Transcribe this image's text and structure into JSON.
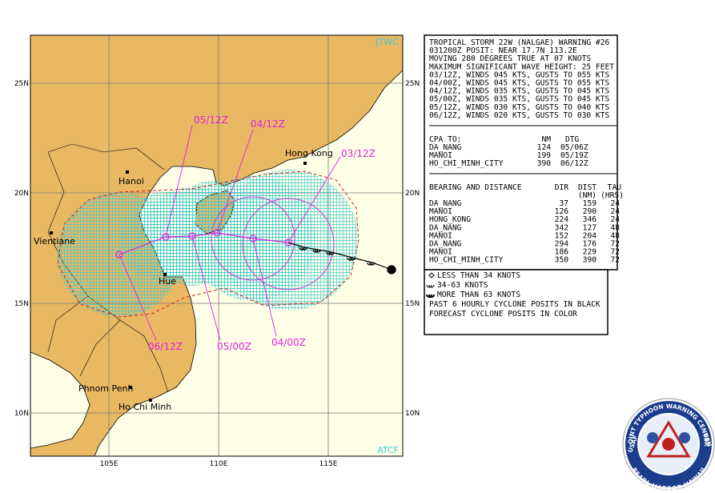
{
  "map": {
    "corner_labels": {
      "top": "JTWC",
      "bottom": "ATCF"
    },
    "lat_labels": [
      "25N",
      "20N",
      "15N",
      "10N"
    ],
    "lon_labels": [
      "105E",
      "110E",
      "115E"
    ],
    "places": [
      "Hanoi",
      "Vientiane",
      "Hue",
      "Hong Kong",
      "Phnom Penh",
      "Ho Chi Minh"
    ],
    "forecast_labels": [
      "05/12Z",
      "04/12Z",
      "03/12Z",
      "06/12Z",
      "05/00Z",
      "04/00Z"
    ]
  },
  "warning": {
    "lines": [
      "TROPICAL STORM 22W (NALGAE) WARNING #26",
      "031200Z POSIT: NEAR 17.7N 113.2E",
      "MOVING 280 DEGREES TRUE AT 07 KNOTS",
      "MAXIMUM SIGNIFICANT WAVE HEIGHT: 25 FEET",
      "03/12Z, WINDS 045 KTS, GUSTS TO 055 KTS",
      "04/00Z, WINDS 045 KTS, GUSTS TO 055 KTS",
      "04/12Z, WINDS 035 KTS, GUSTS TO 045 KTS",
      "05/00Z, WINDS 035 KTS, GUSTS TO 045 KTS",
      "05/12Z, WINDS 030 KTS, GUSTS TO 040 KTS",
      "06/12Z, WINDS 020 KTS, GUSTS TO 030 KTS"
    ],
    "cpa": {
      "headers": [
        "CPA TO:",
        "NM",
        "DTG"
      ],
      "rows": [
        [
          "DA_NANG",
          "124",
          "05/06Z"
        ],
        [
          "MANOI",
          "199",
          "05/19Z"
        ],
        [
          "HO_CHI_MINH_CITY",
          "390",
          "06/12Z"
        ]
      ]
    },
    "bearing": {
      "headers": [
        "BEARING AND DISTANCE",
        "DIR",
        "DIST",
        "TAU"
      ],
      "units": [
        "(NM)",
        "(HRS)"
      ],
      "rows": [
        [
          "DA_NANG",
          "37",
          "159",
          "24"
        ],
        [
          "MANOI",
          "126",
          "290",
          "24"
        ],
        [
          "HONG_KONG",
          "224",
          "346",
          "24"
        ],
        [
          "DA_NANG",
          "342",
          "127",
          "48"
        ],
        [
          "MANOI",
          "152",
          "204",
          "48"
        ],
        [
          "DA_NANG",
          "294",
          "176",
          "72"
        ],
        [
          "MANOI",
          "186",
          "229",
          "72"
        ],
        [
          "HO_CHI_MINH_CITY",
          "350",
          "390",
          "72"
        ]
      ]
    }
  },
  "legend": {
    "lines": [
      "LESS THAN 34 KNOTS",
      "34-63 KNOTS",
      "MORE THAN 63 KNOTS",
      "PAST 6 HOURLY CYCLONE POSITS IN BLACK",
      "FORECAST CYCLONE POSITS IN COLOR"
    ]
  },
  "logo": {
    "top": "JOINT TYPHOON WARNING CENTER",
    "bottom": "PEARL HARBOR HAWAII",
    "left": "USAF",
    "right": "USN"
  }
}
